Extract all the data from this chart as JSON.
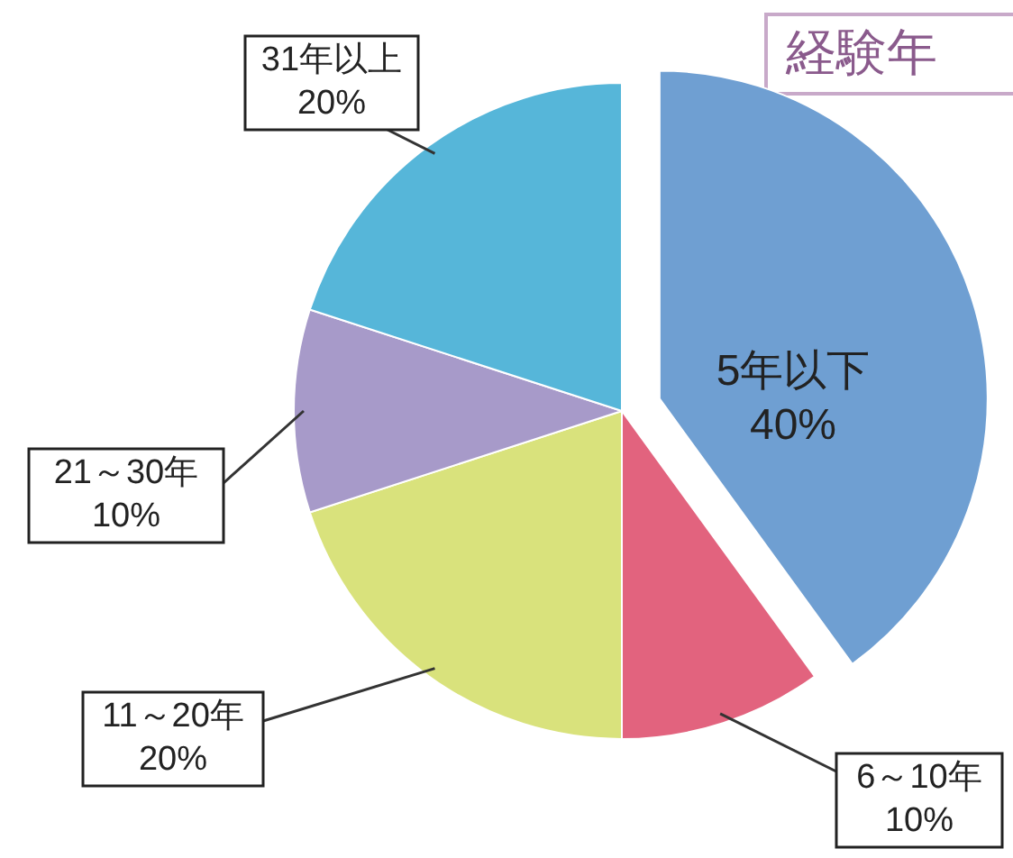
{
  "chart_data": {
    "type": "pie",
    "title": "経験年",
    "categories": [
      "5年以下",
      "6～10年",
      "11～20年",
      "21～30年",
      "31年以上"
    ],
    "values": [
      40,
      10,
      20,
      10,
      20
    ],
    "value_labels": [
      "40%",
      "10%",
      "20%",
      "10%",
      "20%"
    ],
    "colors": [
      "#6f9fd2",
      "#e2637e",
      "#d9e27c",
      "#a79ac9",
      "#56b6d9"
    ]
  }
}
